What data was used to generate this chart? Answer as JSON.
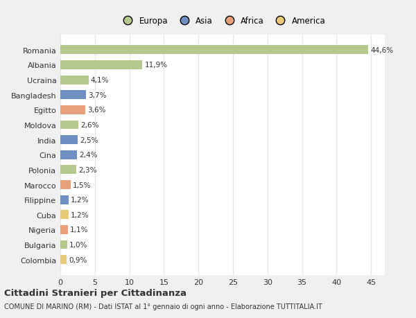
{
  "categories": [
    "Colombia",
    "Bulgaria",
    "Nigeria",
    "Cuba",
    "Filippine",
    "Marocco",
    "Polonia",
    "Cina",
    "India",
    "Moldova",
    "Egitto",
    "Bangladesh",
    "Ucraina",
    "Albania",
    "Romania"
  ],
  "values": [
    0.9,
    1.0,
    1.1,
    1.2,
    1.2,
    1.5,
    2.3,
    2.4,
    2.5,
    2.6,
    3.6,
    3.7,
    4.1,
    11.9,
    44.6
  ],
  "labels": [
    "0,9%",
    "1,0%",
    "1,1%",
    "1,2%",
    "1,2%",
    "1,5%",
    "2,3%",
    "2,4%",
    "2,5%",
    "2,6%",
    "3,6%",
    "3,7%",
    "4,1%",
    "11,9%",
    "44,6%"
  ],
  "colors": [
    "#e8c97a",
    "#b5c98e",
    "#e8a07a",
    "#e8c97a",
    "#6f8fc2",
    "#e8a07a",
    "#b5c98e",
    "#6f8fc2",
    "#6f8fc2",
    "#b5c98e",
    "#e8a07a",
    "#6f8fc2",
    "#b5c98e",
    "#b5c98e",
    "#b5c98e"
  ],
  "legend_labels": [
    "Europa",
    "Asia",
    "Africa",
    "America"
  ],
  "legend_colors": [
    "#b5c98e",
    "#6f8fc2",
    "#e8a07a",
    "#e8c97a"
  ],
  "title": "Cittadini Stranieri per Cittadinanza",
  "subtitle": "COMUNE DI MARINO (RM) - Dati ISTAT al 1° gennaio di ogni anno - Elaborazione TUTTITALIA.IT",
  "xlim": [
    0,
    47
  ],
  "xticks": [
    0,
    5,
    10,
    15,
    20,
    25,
    30,
    35,
    40,
    45
  ],
  "fig_bg_color": "#f0f0f0",
  "plot_bg_color": "#ffffff",
  "grid_color": "#e8e8e8",
  "text_color": "#333333"
}
